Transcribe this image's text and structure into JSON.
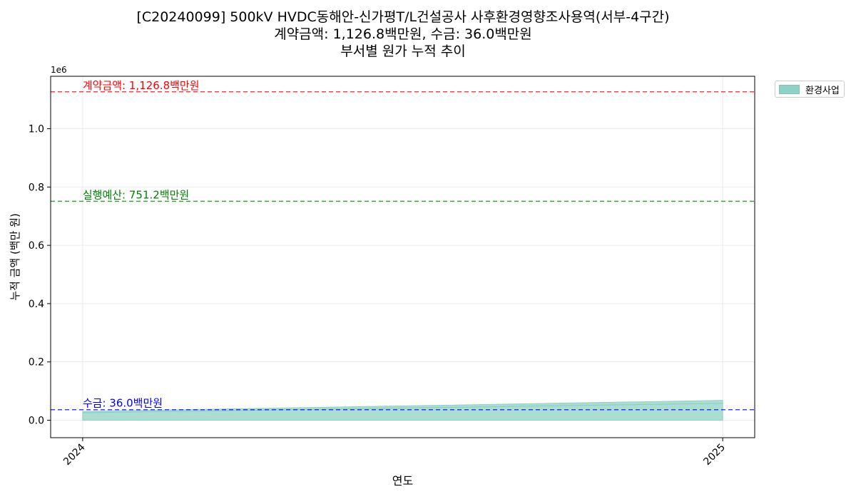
{
  "title": {
    "line1": "[C20240099] 500kV HVDC동해안-신가평T/L건설공사 사후환경영향조사용역(서부-4구간)",
    "line2": "계약금액: 1,126.8백만원, 수금: 36.0백만원",
    "line3": "부서별 원가 누적 추이"
  },
  "chart_data": {
    "type": "area",
    "title": "부서별 원가 누적 추이",
    "xlabel": "연도",
    "ylabel": "누적 금액 (백만 원)",
    "x": [
      2024,
      2025
    ],
    "xlim": [
      2023.95,
      2025.05
    ],
    "ylim": [
      -60000,
      1180000
    ],
    "yticks": [
      0.0,
      0.2,
      0.4,
      0.6,
      0.8,
      1.0
    ],
    "y_tick_labels": [
      "0.0",
      "0.2",
      "0.4",
      "0.6",
      "0.8",
      "1.0"
    ],
    "y_scale_label": "1e6",
    "grid": true,
    "legend_position": "outside upper right",
    "series": [
      {
        "name": "환경사업",
        "values": [
          30000,
          68000
        ],
        "color": "#8fd1c4"
      }
    ],
    "reference_lines": [
      {
        "label": "계약금액: 1,126.8백만원",
        "value": 1126800,
        "color": "#ff0000"
      },
      {
        "label": "실행예산: 751.2백만원",
        "value": 751200,
        "color": "#008000"
      },
      {
        "label": "수금: 36.0백만원",
        "value": 36000,
        "color": "#0000ff"
      }
    ]
  }
}
